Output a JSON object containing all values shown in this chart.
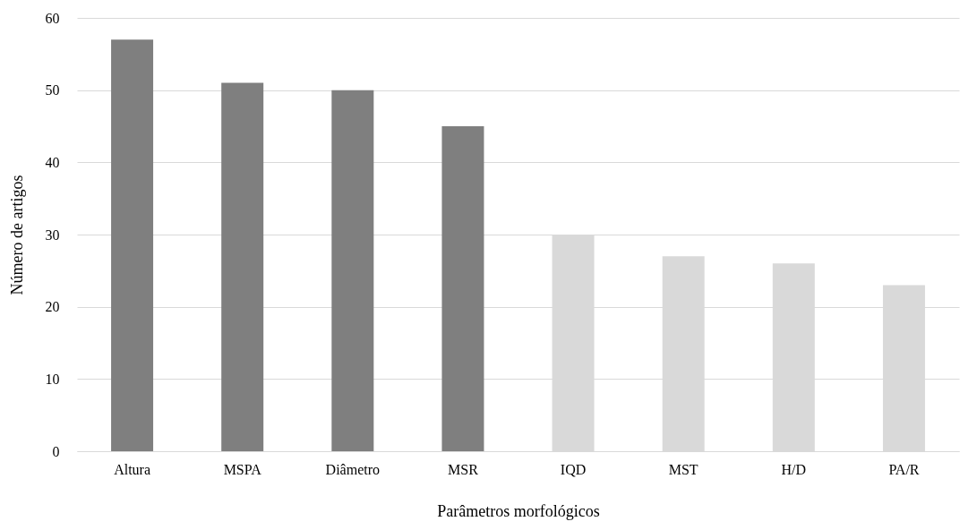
{
  "chart_data": {
    "type": "bar",
    "xlabel": "Parâmetros morfológicos",
    "ylabel": "Número de artigos",
    "categories": [
      "Altura",
      "MSPA",
      "Diâmetro",
      "MSR",
      "IQD",
      "MST",
      "H/D",
      "PA/R"
    ],
    "values": [
      57,
      51,
      50,
      45,
      30,
      27,
      26,
      23
    ],
    "colors": [
      "#7f7f7f",
      "#7f7f7f",
      "#7f7f7f",
      "#7f7f7f",
      "#d9d9d9",
      "#d9d9d9",
      "#d9d9d9",
      "#d9d9d9"
    ],
    "ylim": [
      0,
      60
    ],
    "yticks": [
      0,
      10,
      20,
      30,
      40,
      50,
      60
    ],
    "grid": "y"
  }
}
